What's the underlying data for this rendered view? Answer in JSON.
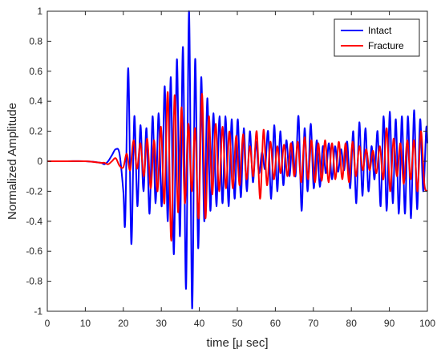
{
  "chart_data": {
    "type": "line",
    "title": "",
    "xlabel": "time [μ sec]",
    "ylabel": "Normalized Amplitude",
    "xlim": [
      0,
      100
    ],
    "ylim": [
      -1,
      1
    ],
    "xticks": [
      "0",
      "10",
      "20",
      "30",
      "40",
      "50",
      "60",
      "70",
      "80",
      "90",
      "100"
    ],
    "yticks": [
      "1",
      "0.8",
      "0.6",
      "0.4",
      "0.2",
      "0",
      "-0.2",
      "-0.4",
      "-0.6",
      "-0.8",
      "-1"
    ],
    "grid": false,
    "legend_position": "top-right",
    "series": [
      {
        "name": "Intact",
        "color": "#0000ff",
        "x": [
          0,
          5,
          10,
          14,
          15,
          16,
          17,
          18,
          19,
          20,
          20.5,
          21.3,
          22.1,
          22.9,
          23.7,
          24.5,
          25.3,
          26.1,
          26.9,
          27.7,
          28.5,
          29.3,
          30.1,
          30.9,
          31.7,
          32.5,
          33.3,
          34.1,
          34.9,
          35.7,
          36.5,
          37.3,
          38.1,
          38.9,
          39.7,
          40.5,
          41.3,
          42.1,
          42.9,
          43.7,
          44.5,
          45.3,
          46.1,
          46.9,
          47.7,
          48.5,
          49.3,
          50.1,
          50.9,
          51.7,
          52.5,
          53.3,
          54.1,
          54.9,
          55.7,
          56.5,
          57.3,
          58.1,
          58.9,
          59.7,
          60.5,
          61.3,
          62.1,
          62.9,
          63.7,
          64.5,
          65.3,
          66.1,
          66.9,
          67.7,
          68.5,
          69.3,
          70.1,
          70.9,
          71.7,
          72.5,
          73.3,
          74.1,
          74.9,
          75.7,
          76.5,
          77.3,
          78.1,
          78.9,
          79.7,
          80.5,
          81.3,
          82.1,
          82.9,
          83.7,
          84.5,
          85.3,
          86.1,
          86.9,
          87.7,
          88.5,
          89.3,
          90.1,
          90.9,
          91.7,
          92.5,
          93.3,
          94.1,
          94.9,
          95.7,
          96.5,
          97.3,
          98.1,
          98.9,
          99.7,
          100
        ],
        "y": [
          0,
          0,
          0,
          -0.01,
          -0.02,
          0,
          0.04,
          0.08,
          0.05,
          -0.2,
          -0.4,
          0.62,
          -0.55,
          0.3,
          -0.3,
          0.24,
          -0.2,
          0.22,
          -0.35,
          0.3,
          -0.28,
          0.32,
          -0.3,
          0.5,
          -0.4,
          0.56,
          -0.62,
          0.68,
          -0.5,
          0.76,
          -0.85,
          1.0,
          -0.98,
          0.68,
          -0.58,
          0.56,
          -0.4,
          0.42,
          -0.33,
          0.32,
          -0.3,
          0.3,
          -0.28,
          0.3,
          -0.3,
          0.28,
          -0.25,
          0.28,
          -0.24,
          0.22,
          -0.2,
          0.2,
          -0.14,
          0.13,
          -0.08,
          0.06,
          -0.05,
          0.2,
          -0.25,
          0.24,
          -0.2,
          0.2,
          -0.16,
          0.14,
          -0.1,
          0.13,
          -0.1,
          0.3,
          -0.33,
          0.22,
          -0.2,
          0.25,
          -0.18,
          0.14,
          -0.17,
          0.1,
          -0.08,
          0.12,
          -0.12,
          0.1,
          -0.07,
          0.08,
          -0.06,
          0.13,
          -0.18,
          0.2,
          -0.28,
          0.26,
          -0.23,
          0.22,
          -0.2,
          0.1,
          -0.12,
          0.2,
          -0.3,
          0.3,
          -0.33,
          0.33,
          -0.28,
          0.28,
          -0.35,
          0.3,
          -0.35,
          0.3,
          -0.38,
          0.34,
          -0.32,
          0.28,
          -0.2,
          0.22,
          0.12
        ]
      },
      {
        "name": "Fracture",
        "color": "#ff0000",
        "x": [
          0,
          5,
          10,
          14,
          15,
          16,
          17,
          18,
          19,
          20,
          20.9,
          21.8,
          22.7,
          23.6,
          24.5,
          25.4,
          26.3,
          27.2,
          28.1,
          29,
          29.9,
          30.8,
          31.7,
          32.6,
          33.5,
          34.4,
          35.3,
          36.2,
          37.1,
          38,
          38.9,
          39.8,
          40.7,
          41.6,
          42.5,
          43.4,
          44.3,
          45.2,
          46.1,
          47,
          47.9,
          48.8,
          49.7,
          50.6,
          51.5,
          52.4,
          53.3,
          54.2,
          55.1,
          56,
          56.9,
          57.8,
          58.7,
          59.6,
          60.5,
          61.4,
          62.3,
          63.2,
          64.1,
          65,
          65.9,
          66.8,
          67.7,
          68.6,
          69.5,
          70.4,
          71.3,
          72.2,
          73.1,
          74,
          74.9,
          75.8,
          76.7,
          77.6,
          78.5,
          79.4,
          80.3,
          81.2,
          82.1,
          83,
          83.9,
          84.8,
          85.7,
          86.6,
          87.5,
          88.4,
          89.3,
          90.2,
          91.1,
          92,
          92.9,
          93.8,
          94.7,
          95.6,
          96.5,
          97.4,
          98.3,
          99.2,
          100
        ],
        "y": [
          0,
          0,
          0,
          -0.01,
          -0.01,
          -0.02,
          0,
          0.02,
          -0.03,
          -0.04,
          0.05,
          -0.06,
          0.14,
          -0.05,
          0.12,
          -0.1,
          0.15,
          -0.18,
          0.14,
          -0.2,
          0.23,
          -0.28,
          0.46,
          -0.53,
          0.44,
          -0.34,
          0.36,
          -0.28,
          0.25,
          -0.2,
          0.22,
          -0.38,
          0.45,
          -0.38,
          0.3,
          -0.22,
          0.25,
          -0.2,
          0.23,
          -0.18,
          0.2,
          -0.18,
          0.17,
          -0.16,
          0.18,
          -0.12,
          0.1,
          -0.1,
          0.2,
          -0.25,
          0.21,
          -0.16,
          0.13,
          -0.12,
          0.1,
          -0.08,
          0.11,
          -0.1,
          0.12,
          -0.1,
          0.13,
          -0.14,
          0.16,
          -0.12,
          0.14,
          -0.14,
          0.12,
          -0.13,
          0.14,
          -0.14,
          0.12,
          -0.12,
          0.13,
          -0.12,
          0.12,
          -0.14,
          0.13,
          -0.1,
          0.1,
          -0.06,
          0.08,
          -0.06,
          0.07,
          -0.08,
          0.1,
          -0.12,
          0.22,
          -0.2,
          0.15,
          -0.1,
          0.12,
          -0.15,
          0.14,
          -0.12,
          0.14,
          -0.2,
          0.2,
          -0.15,
          -0.2
        ]
      }
    ]
  }
}
